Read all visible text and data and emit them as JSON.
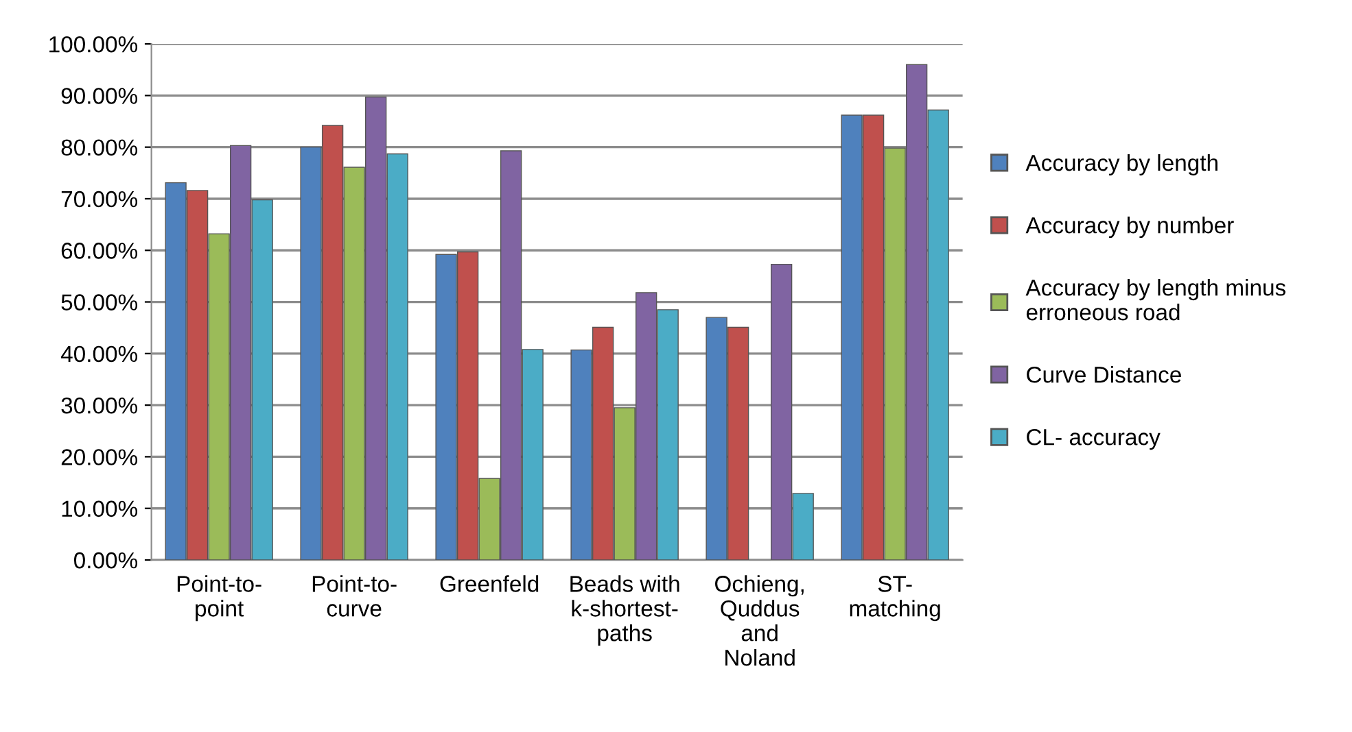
{
  "chart_data": {
    "type": "bar",
    "categories": [
      "Point-to-\npoint",
      "Point-to-\ncurve",
      "Greenfeld",
      "Beads with\nk-shortest-\npaths",
      "Ochieng,\nQuddus\nand\nNoland",
      "ST-\nmatching"
    ],
    "series": [
      {
        "name": "Accuracy by length",
        "color": "#4f81bd",
        "values": [
          73.1,
          80.0,
          59.2,
          40.7,
          47.0,
          86.2
        ]
      },
      {
        "name": "Accuracy by number",
        "color": "#c0504d",
        "values": [
          71.6,
          84.2,
          59.7,
          45.1,
          45.1,
          86.2
        ]
      },
      {
        "name": "Accuracy by length minus\nerroneous road",
        "color": "#9bbb59",
        "values": [
          63.2,
          76.1,
          15.8,
          29.5,
          null,
          79.8
        ]
      },
      {
        "name": "Curve Distance",
        "color": "#8064a2",
        "values": [
          80.3,
          89.7,
          79.3,
          51.8,
          57.3,
          96.0
        ]
      },
      {
        "name": "CL- accuracy",
        "color": "#4bacc6",
        "values": [
          69.8,
          78.7,
          40.8,
          48.5,
          12.9,
          87.2
        ]
      }
    ],
    "ylim": [
      0,
      100
    ],
    "yticks": [
      {
        "value": 0,
        "label": "0.00%"
      },
      {
        "value": 10,
        "label": "10.00%"
      },
      {
        "value": 20,
        "label": "20.00%"
      },
      {
        "value": 30,
        "label": "30.00%"
      },
      {
        "value": 40,
        "label": "40.00%"
      },
      {
        "value": 50,
        "label": "50.00%"
      },
      {
        "value": 60,
        "label": "60.00%"
      },
      {
        "value": 70,
        "label": "70.00%"
      },
      {
        "value": 80,
        "label": "80.00%"
      },
      {
        "value": 90,
        "label": "90.00%"
      },
      {
        "value": 100,
        "label": "100.00%"
      }
    ],
    "grid": "y",
    "legend": "right"
  }
}
